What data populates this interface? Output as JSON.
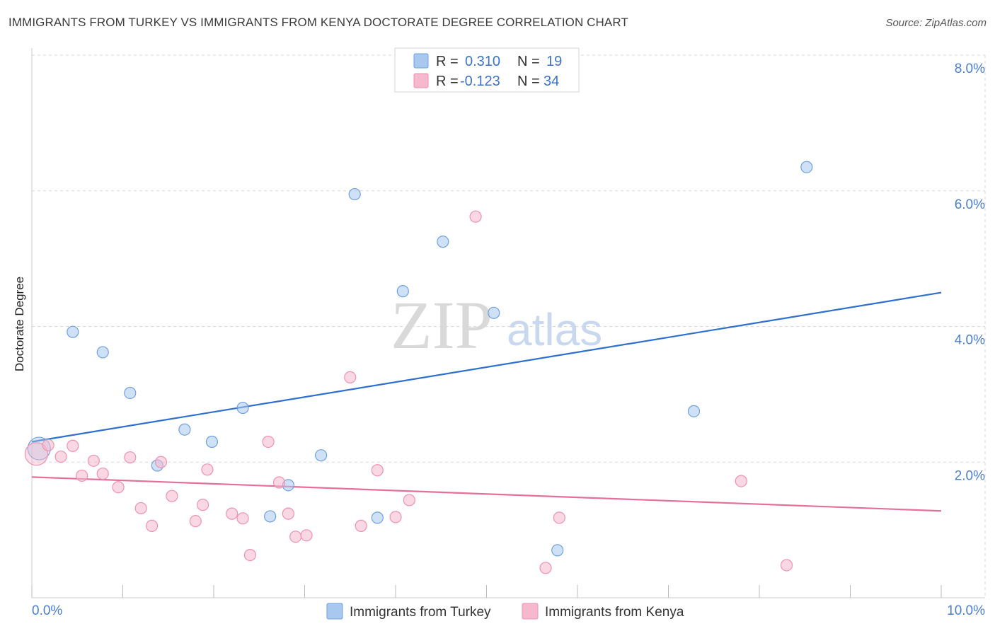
{
  "title": "IMMIGRANTS FROM TURKEY VS IMMIGRANTS FROM KENYA DOCTORATE DEGREE CORRELATION CHART",
  "source": "Source: ZipAtlas.com",
  "watermark": {
    "zip": "ZIP",
    "atlas": "atlas"
  },
  "colors": {
    "turkey_fill": "#a8c8f0",
    "turkey_stroke": "#6fa0e0",
    "turkey_line": "#2f6fcf",
    "kenya_fill": "#f6b8cc",
    "kenya_stroke": "#ef92b0",
    "kenya_line": "#e56f97",
    "axis_text": "#4a7fd0",
    "grid": "#d8d8d8"
  },
  "legend": {
    "rows": [
      {
        "r_label": "R =",
        "r_value": "0.310",
        "n_label": "N =",
        "n_value": "19"
      },
      {
        "r_label": "R =",
        "r_value": "-0.123",
        "n_label": "N =",
        "n_value": "34"
      }
    ]
  },
  "chart_data": {
    "type": "scatter",
    "title": "IMMIGRANTS FROM TURKEY VS IMMIGRANTS FROM KENYA DOCTORATE DEGREE CORRELATION CHART",
    "xlabel": "",
    "ylabel": "Doctorate Degree",
    "xlim": [
      0,
      10
    ],
    "ylim": [
      0,
      8
    ],
    "x_tick_labels": {
      "left": "0.0%",
      "right": "10.0%"
    },
    "y_ticks": [
      2,
      4,
      6,
      8
    ],
    "y_tick_labels": [
      "2.0%",
      "4.0%",
      "6.0%",
      "8.0%"
    ],
    "series": [
      {
        "name": "Immigrants from Turkey",
        "r": 0.31,
        "n": 19,
        "trend": {
          "x": [
            0,
            10
          ],
          "y": [
            2.3,
            4.5
          ]
        },
        "points": [
          {
            "x": 0.08,
            "y": 2.2,
            "big": true
          },
          {
            "x": 0.45,
            "y": 3.92
          },
          {
            "x": 0.78,
            "y": 3.62
          },
          {
            "x": 1.08,
            "y": 3.02
          },
          {
            "x": 1.38,
            "y": 1.95
          },
          {
            "x": 1.68,
            "y": 2.48
          },
          {
            "x": 1.98,
            "y": 2.3
          },
          {
            "x": 2.32,
            "y": 2.8
          },
          {
            "x": 2.62,
            "y": 1.2
          },
          {
            "x": 2.82,
            "y": 1.66
          },
          {
            "x": 3.18,
            "y": 2.1
          },
          {
            "x": 3.55,
            "y": 5.95
          },
          {
            "x": 3.8,
            "y": 1.18
          },
          {
            "x": 4.08,
            "y": 4.52
          },
          {
            "x": 4.52,
            "y": 5.25
          },
          {
            "x": 5.08,
            "y": 4.2
          },
          {
            "x": 5.78,
            "y": 0.7
          },
          {
            "x": 7.28,
            "y": 2.75
          },
          {
            "x": 8.52,
            "y": 6.35
          }
        ]
      },
      {
        "name": "Immigrants from Kenya",
        "r": -0.123,
        "n": 34,
        "trend": {
          "x": [
            0,
            10
          ],
          "y": [
            1.78,
            1.28
          ]
        },
        "points": [
          {
            "x": 0.05,
            "y": 2.12,
            "big": true
          },
          {
            "x": 0.18,
            "y": 2.25
          },
          {
            "x": 0.32,
            "y": 2.08
          },
          {
            "x": 0.45,
            "y": 2.24
          },
          {
            "x": 0.55,
            "y": 1.8
          },
          {
            "x": 0.68,
            "y": 2.02
          },
          {
            "x": 0.78,
            "y": 1.83
          },
          {
            "x": 0.95,
            "y": 1.63
          },
          {
            "x": 1.08,
            "y": 2.07
          },
          {
            "x": 1.2,
            "y": 1.32
          },
          {
            "x": 1.32,
            "y": 1.06
          },
          {
            "x": 1.42,
            "y": 2.0
          },
          {
            "x": 1.54,
            "y": 1.5
          },
          {
            "x": 1.8,
            "y": 1.13
          },
          {
            "x": 1.88,
            "y": 1.37
          },
          {
            "x": 1.93,
            "y": 1.89
          },
          {
            "x": 2.2,
            "y": 1.24
          },
          {
            "x": 2.32,
            "y": 1.17
          },
          {
            "x": 2.4,
            "y": 0.63
          },
          {
            "x": 2.6,
            "y": 2.3
          },
          {
            "x": 2.72,
            "y": 1.7
          },
          {
            "x": 2.82,
            "y": 1.24
          },
          {
            "x": 2.9,
            "y": 0.9
          },
          {
            "x": 3.02,
            "y": 0.92
          },
          {
            "x": 3.5,
            "y": 3.25
          },
          {
            "x": 3.62,
            "y": 1.06
          },
          {
            "x": 3.8,
            "y": 1.88
          },
          {
            "x": 4.0,
            "y": 1.19
          },
          {
            "x": 4.15,
            "y": 1.44
          },
          {
            "x": 4.88,
            "y": 5.62
          },
          {
            "x": 5.65,
            "y": 0.44
          },
          {
            "x": 5.8,
            "y": 1.18
          },
          {
            "x": 7.8,
            "y": 1.72
          },
          {
            "x": 8.3,
            "y": 0.48
          }
        ]
      }
    ],
    "legend_position": "top-center"
  }
}
